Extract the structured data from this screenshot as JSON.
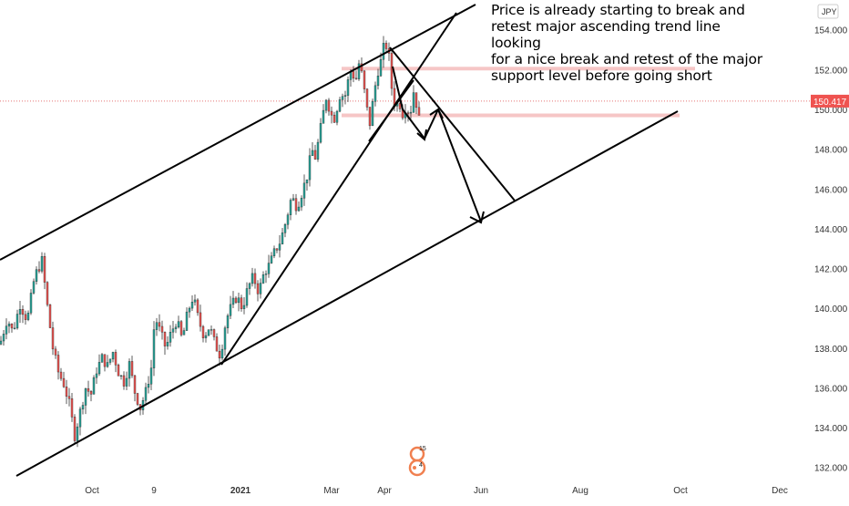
{
  "chart_data": {
    "type": "candlestick",
    "currency_label": "JPY",
    "last_price_label": "150.417",
    "y_axis_ticks": [
      "154.000",
      "152.000",
      "150.000",
      "148.000",
      "146.000",
      "144.000",
      "142.000",
      "140.000",
      "138.000",
      "136.000",
      "134.000",
      "132.000"
    ],
    "x_axis_ticks": [
      "Oct",
      "9",
      "2021",
      "Mar",
      "Apr",
      "Jun",
      "Aug",
      "Oct",
      "Dec"
    ],
    "ylim": [
      131.3,
      155.5
    ],
    "annotation": "Price is already starting to break and\nretest major ascending trend line looking\nfor a nice break and retest of the major\nsupport level before going short",
    "resistance_zones": [
      {
        "level": 152.05,
        "color": "#f6c6c6"
      },
      {
        "level": 149.7,
        "color": "#f6c6c6"
      }
    ],
    "last_price_level": 150.417,
    "price_path": [
      [
        0,
        138.2
      ],
      [
        8,
        139.5
      ],
      [
        14,
        138.8
      ],
      [
        22,
        140.2
      ],
      [
        30,
        139.4
      ],
      [
        38,
        141.6
      ],
      [
        46,
        142.4
      ],
      [
        52,
        140.1
      ],
      [
        58,
        138.0
      ],
      [
        64,
        136.8
      ],
      [
        70,
        136.2
      ],
      [
        76,
        135.2
      ],
      [
        82,
        133.6
      ],
      [
        88,
        134.8
      ],
      [
        94,
        136.0
      ],
      [
        100,
        135.7
      ],
      [
        106,
        136.9
      ],
      [
        112,
        137.5
      ],
      [
        118,
        137.1
      ],
      [
        124,
        137.8
      ],
      [
        130,
        136.8
      ],
      [
        136,
        136.3
      ],
      [
        142,
        137.2
      ],
      [
        148,
        135.8
      ],
      [
        154,
        135.0
      ],
      [
        160,
        135.8
      ],
      [
        166,
        137.0
      ],
      [
        170,
        139.6
      ],
      [
        176,
        138.8
      ],
      [
        182,
        138.0
      ],
      [
        188,
        138.8
      ],
      [
        194,
        139.4
      ],
      [
        200,
        138.4
      ],
      [
        206,
        139.8
      ],
      [
        212,
        140.6
      ],
      [
        218,
        139.4
      ],
      [
        224,
        138.6
      ],
      [
        230,
        139.1
      ],
      [
        236,
        138.2
      ],
      [
        242,
        137.6
      ],
      [
        248,
        139.4
      ],
      [
        254,
        140.1
      ],
      [
        260,
        140.6
      ],
      [
        266,
        140.0
      ],
      [
        272,
        141.0
      ],
      [
        278,
        141.6
      ],
      [
        284,
        140.8
      ],
      [
        290,
        141.8
      ],
      [
        296,
        142.2
      ],
      [
        302,
        142.9
      ],
      [
        308,
        143.4
      ],
      [
        314,
        144.4
      ],
      [
        320,
        145.6
      ],
      [
        326,
        145.1
      ],
      [
        332,
        145.9
      ],
      [
        338,
        146.8
      ],
      [
        342,
        148.0
      ],
      [
        346,
        147.6
      ],
      [
        350,
        148.5
      ],
      [
        354,
        149.6
      ],
      [
        358,
        150.6
      ],
      [
        362,
        150.0
      ],
      [
        366,
        149.4
      ],
      [
        370,
        150.1
      ],
      [
        374,
        150.9
      ],
      [
        378,
        150.5
      ],
      [
        382,
        151.4
      ],
      [
        386,
        152.1
      ],
      [
        390,
        151.3
      ],
      [
        394,
        152.3
      ],
      [
        398,
        151.6
      ],
      [
        402,
        150.2
      ],
      [
        406,
        149.3
      ],
      [
        410,
        150.6
      ],
      [
        414,
        151.8
      ],
      [
        418,
        152.4
      ],
      [
        422,
        153.3
      ],
      [
        426,
        153.1
      ],
      [
        430,
        151.1
      ],
      [
        434,
        150.1
      ],
      [
        438,
        150.4
      ],
      [
        442,
        149.8
      ],
      [
        446,
        150.2
      ],
      [
        450,
        149.7
      ],
      [
        454,
        150.9
      ],
      [
        458,
        150.1
      ],
      [
        460,
        149.5
      ]
    ]
  },
  "logo": {
    "text_top": "15",
    "text_mid": "4"
  }
}
